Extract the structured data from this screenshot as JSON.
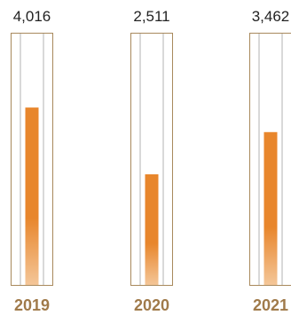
{
  "chart_data": {
    "type": "bar",
    "categories": [
      "2019",
      "2020",
      "2021"
    ],
    "values": [
      4016,
      2511,
      3462
    ],
    "value_labels": [
      "4,016",
      "2,511",
      "3,462"
    ],
    "title": "",
    "xlabel": "",
    "ylabel": "",
    "ylim": [
      0,
      5700
    ],
    "grid": false,
    "legend": "none"
  },
  "colors": {
    "bar_top": "#e8862c",
    "bar_bottom": "#f4c79a",
    "frame": "#a8895c",
    "track": "#d9d9d9",
    "year_text": "#a07a4a",
    "value_text": "#222222"
  }
}
